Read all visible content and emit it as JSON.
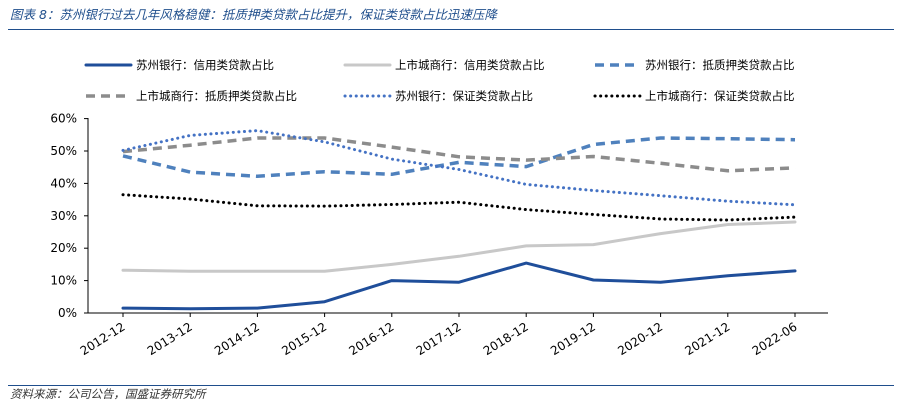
{
  "header": {
    "title": "图表 8：苏州银行过去几年风格稳健：抵质押类贷款占比提升，保证类贷款占比迅速压降"
  },
  "footer": {
    "source": "资料来源：公司公告，国盛证券研究所"
  },
  "chart_data": {
    "type": "line",
    "categories": [
      "2012-12",
      "2013-12",
      "2014-12",
      "2015-12",
      "2016-12",
      "2017-12",
      "2018-12",
      "2019-12",
      "2020-12",
      "2021-12",
      "2022-06"
    ],
    "ylim": [
      0,
      60
    ],
    "yticks": [
      "0%",
      "10%",
      "20%",
      "30%",
      "40%",
      "50%",
      "60%"
    ],
    "legend_position": "top",
    "series": [
      {
        "name": "苏州银行：信用类贷款占比",
        "color": "#1f4e9a",
        "style": "solid",
        "values": [
          1.5,
          1.3,
          1.5,
          3.5,
          10,
          9.5,
          15.4,
          10.2,
          9.5,
          11.5,
          13
        ]
      },
      {
        "name": "上市城商行：信用类贷款占比",
        "color": "#c8c8c8",
        "style": "solid",
        "values": [
          13.2,
          12.9,
          12.9,
          12.9,
          15,
          17.5,
          20.7,
          21.1,
          24.5,
          27.3,
          28.1
        ]
      },
      {
        "name": "苏州银行：抵质押类贷款占比",
        "color": "#4f81bd",
        "style": "dash",
        "values": [
          48.5,
          43.5,
          42.2,
          43.6,
          42.8,
          46.5,
          45.2,
          52,
          54,
          53.8,
          53.5
        ]
      },
      {
        "name": "上市城商行：抵质押类贷款占比",
        "color": "#8c8c8c",
        "style": "dash",
        "values": [
          49.8,
          51.8,
          54,
          54,
          51.2,
          48.2,
          47.2,
          48.3,
          46.2,
          43.9,
          44.8
        ]
      },
      {
        "name": "苏州银行：保证类贷款占比",
        "color": "#4472c4",
        "style": "dot",
        "values": [
          50.2,
          54.8,
          56.3,
          52.8,
          47.5,
          44.3,
          39.7,
          37.8,
          36.2,
          34.5,
          33.4
        ]
      },
      {
        "name": "上市城商行：保证类贷款占比",
        "color": "#000000",
        "style": "dot",
        "values": [
          36.5,
          35.2,
          33.1,
          33,
          33.5,
          34.2,
          31.9,
          30.4,
          29,
          28.7,
          29.6
        ]
      }
    ]
  }
}
